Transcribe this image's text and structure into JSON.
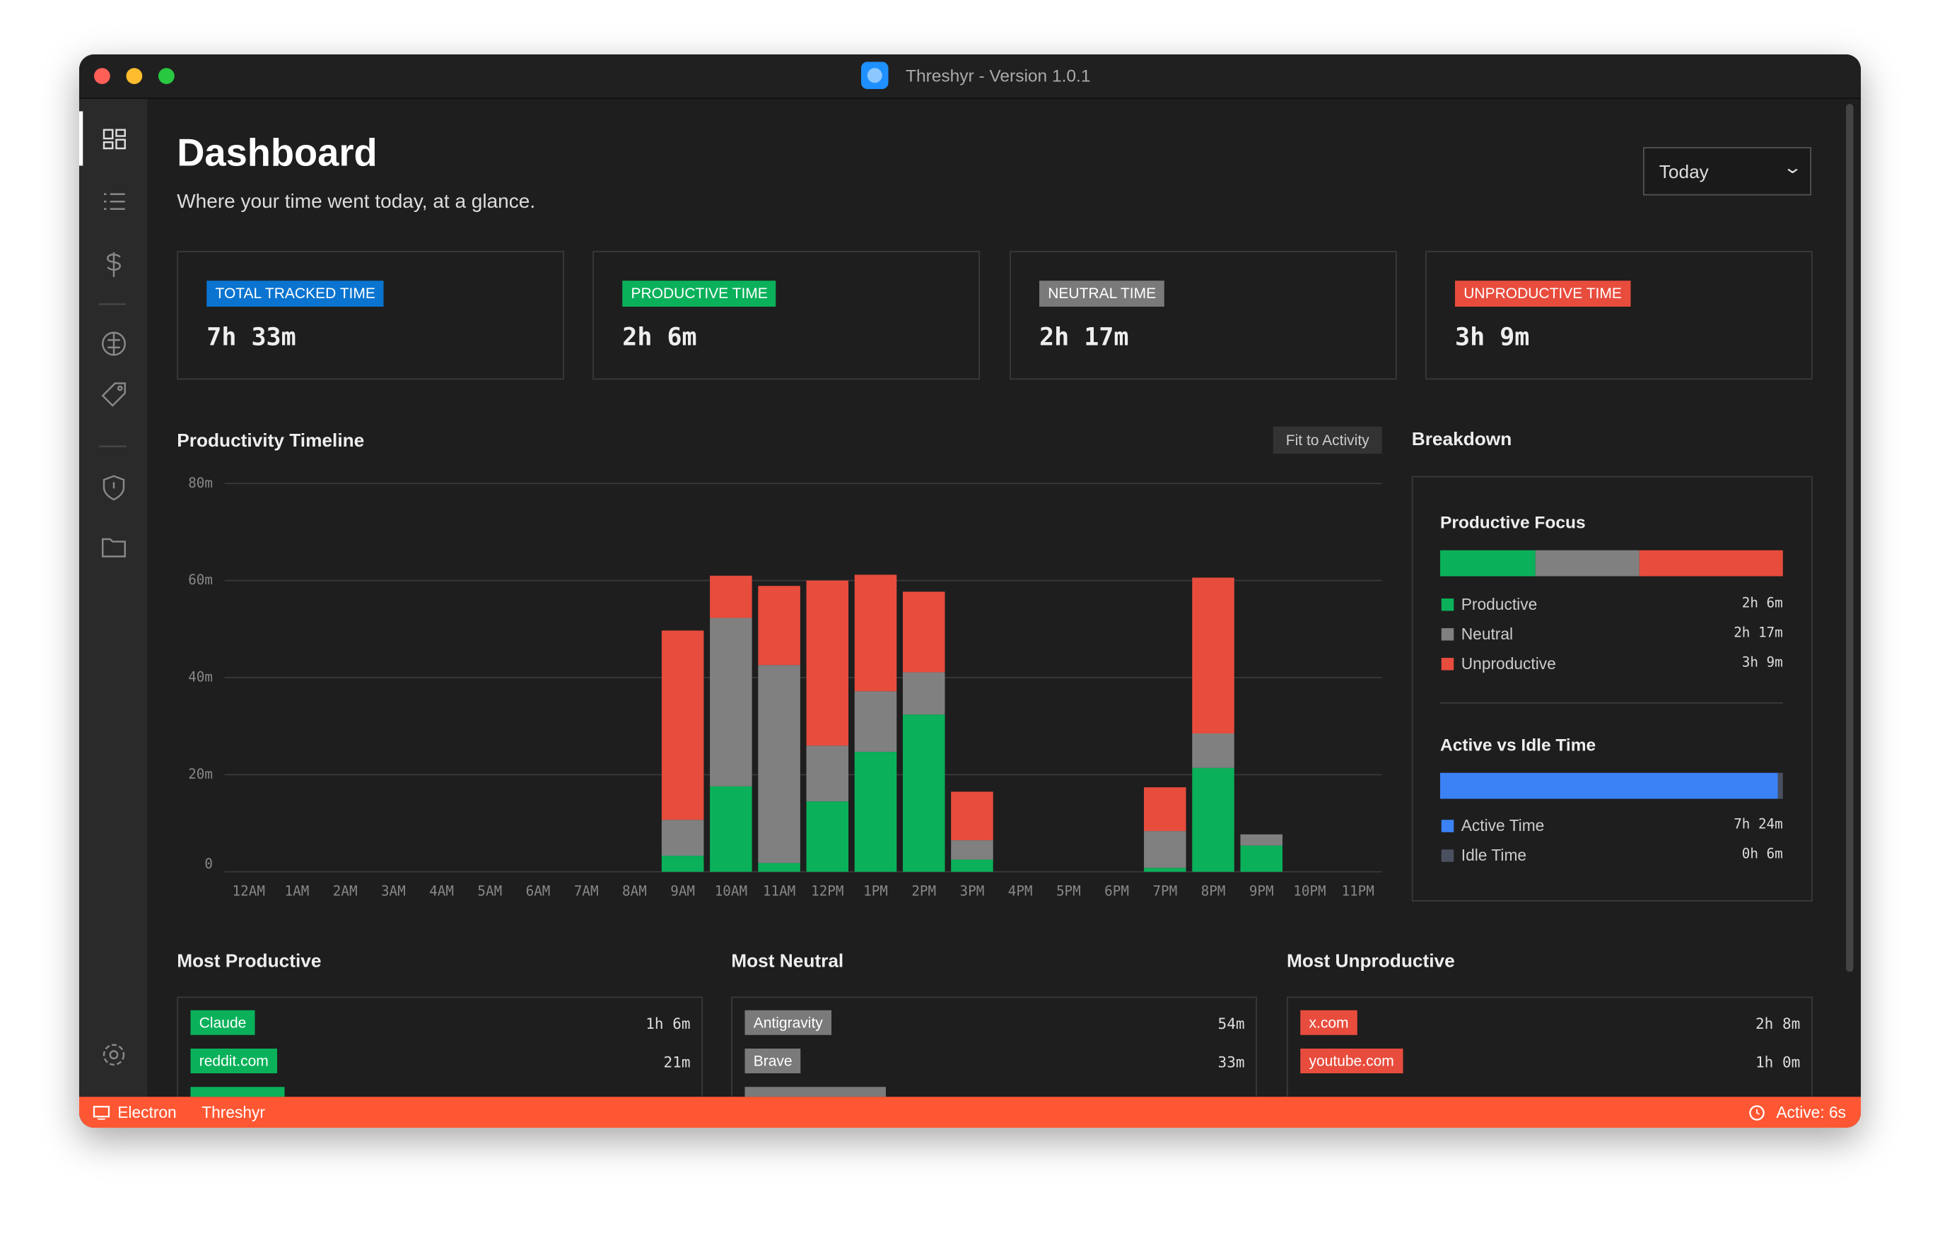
{
  "window": {
    "title": "Threshyr - Version 1.0.1"
  },
  "header": {
    "title": "Dashboard",
    "subtitle": "Where your time went today, at a glance.",
    "range": "Today"
  },
  "cards": [
    {
      "label": "TOTAL TRACKED TIME",
      "value": "7h 33m",
      "color": "#0a74d0"
    },
    {
      "label": "PRODUCTIVE TIME",
      "value": "2h 6m",
      "color": "#0ab15a"
    },
    {
      "label": "NEUTRAL TIME",
      "value": "2h 17m",
      "color": "#7a7a7a"
    },
    {
      "label": "UNPRODUCTIVE TIME",
      "value": "3h 9m",
      "color": "#e84c3d"
    }
  ],
  "chart_data": {
    "type": "bar",
    "stacked": true,
    "title": "Productivity Timeline",
    "button": "Fit to Activity",
    "categories": [
      "12AM",
      "1AM",
      "2AM",
      "3AM",
      "4AM",
      "5AM",
      "6AM",
      "7AM",
      "8AM",
      "9AM",
      "10AM",
      "11AM",
      "12PM",
      "1PM",
      "2PM",
      "3PM",
      "4PM",
      "5PM",
      "6PM",
      "7PM",
      "8PM",
      "9PM",
      "10PM",
      "11PM"
    ],
    "series": [
      {
        "name": "Productive",
        "color": "#0ab15a",
        "values": [
          0,
          0,
          0,
          0,
          0,
          0,
          0,
          0,
          0,
          3.3,
          17.6,
          1.8,
          14.5,
          24.7,
          32.4,
          2.5,
          0,
          0,
          0,
          0.8,
          21.4,
          5.4,
          0,
          0
        ]
      },
      {
        "name": "Neutral",
        "color": "#808080",
        "values": [
          0,
          0,
          0,
          0,
          0,
          0,
          0,
          0,
          0,
          7.4,
          34.7,
          40.8,
          11.5,
          12.5,
          8.7,
          4,
          0,
          0,
          0,
          7.6,
          7.1,
          2.3,
          0,
          0
        ]
      },
      {
        "name": "Unproductive",
        "color": "#e84c3d",
        "values": [
          0,
          0,
          0,
          0,
          0,
          0,
          0,
          0,
          0,
          39,
          8.7,
          16.3,
          34,
          24,
          16.6,
          10,
          0,
          0,
          0,
          9,
          32.1,
          0,
          0,
          0
        ]
      }
    ],
    "ylim": [
      0,
      80
    ],
    "yticks": [
      0,
      {
        "value": 20,
        "label": "20m"
      },
      {
        "value": 40,
        "label": "40m"
      },
      {
        "value": 60,
        "label": "60m"
      },
      {
        "value": 80,
        "label": "80m"
      }
    ],
    "grid": true
  },
  "breakdown": {
    "title": "Breakdown",
    "focus": {
      "title": "Productive Focus",
      "items": [
        {
          "name": "Productive",
          "value": 126,
          "value_label": "2h 6m",
          "color": "#0ab15a"
        },
        {
          "name": "Neutral",
          "value": 137,
          "value_label": "2h 17m",
          "color": "#808080"
        },
        {
          "name": "Unproductive",
          "value": 189,
          "value_label": "3h 9m",
          "color": "#e84c3d"
        }
      ]
    },
    "activity": {
      "title": "Active vs Idle Time",
      "items": [
        {
          "name": "Active Time",
          "value": 444,
          "value_label": "7h 24m",
          "color": "#3b82f6"
        },
        {
          "name": "Idle Time",
          "value": 6,
          "value_label": "0h 6m",
          "color": "#4a5060"
        }
      ]
    }
  },
  "lists": [
    {
      "title": "Most Productive",
      "color": "#0ab15a",
      "items": [
        {
          "name": "Claude",
          "value": "1h 6m"
        },
        {
          "name": "reddit.com",
          "value": "21m"
        }
      ]
    },
    {
      "title": "Most Neutral",
      "color": "#7a7a7a",
      "items": [
        {
          "name": "Antigravity",
          "value": "54m"
        },
        {
          "name": "Brave",
          "value": "33m"
        }
      ]
    },
    {
      "title": "Most Unproductive",
      "color": "#e84c3d",
      "items": [
        {
          "name": "x.com",
          "value": "2h 8m"
        },
        {
          "name": "youtube.com",
          "value": "1h 0m"
        }
      ]
    }
  ],
  "statusbar": {
    "left": [
      "Electron",
      "Threshyr"
    ],
    "right": "Active: 6s"
  }
}
